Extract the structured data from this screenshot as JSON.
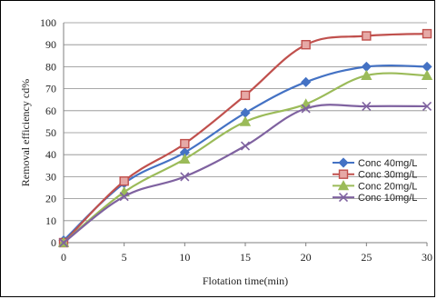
{
  "chart_data": {
    "type": "line",
    "title": "",
    "xlabel": "Flotation time(min)",
    "ylabel": "Removal efficiency cd%",
    "x": [
      0,
      5,
      10,
      15,
      20,
      25,
      30
    ],
    "xlim": [
      0,
      30
    ],
    "ylim": [
      0,
      100
    ],
    "xticks": [
      "0",
      "5",
      "10",
      "15",
      "20",
      "25",
      "30"
    ],
    "yticks": [
      "0",
      "10",
      "20",
      "30",
      "40",
      "50",
      "60",
      "70",
      "80",
      "90",
      "100"
    ],
    "grid": "horizontal",
    "legend_position": "right",
    "series": [
      {
        "name": "Conc 40mg/L",
        "color": "#4472c4",
        "marker": "diamond",
        "values": [
          1,
          27,
          41,
          59,
          73,
          80,
          80
        ]
      },
      {
        "name": "Conc 30mg/L",
        "color": "#c0504d",
        "marker": "square",
        "values": [
          0,
          28,
          45,
          67,
          90,
          94,
          95
        ]
      },
      {
        "name": "Conc 20mg/L",
        "color": "#9bbb59",
        "marker": "triangle",
        "values": [
          0,
          23,
          38,
          55,
          63,
          76,
          76
        ]
      },
      {
        "name": "Conc 10mg/L",
        "color": "#7f62a0",
        "marker": "x",
        "values": [
          0,
          21,
          30,
          44,
          61,
          62,
          62
        ]
      }
    ]
  }
}
